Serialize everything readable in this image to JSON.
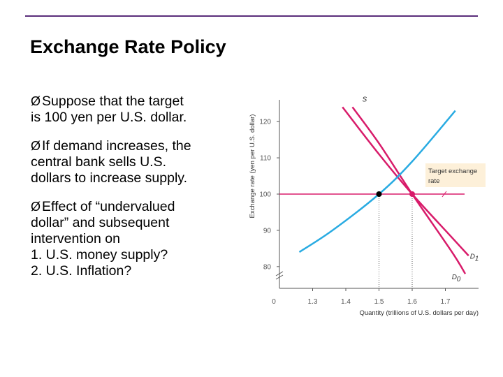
{
  "slide": {
    "title": "Exchange Rate Policy",
    "accent_color": "#5a2d7a"
  },
  "bullets": [
    {
      "marker": "Ø",
      "lines": [
        "Suppose that the target",
        "is 100 yen per U.S. dollar."
      ]
    },
    {
      "marker": "Ø",
      "lines": [
        "If demand increases, the",
        "central bank sells U.S.",
        "dollars to increase supply."
      ]
    },
    {
      "marker": "Ø",
      "lines": [
        "Effect of “undervalued",
        "dollar” and subsequent",
        "intervention on"
      ],
      "sub_items": [
        "1. U.S. money supply?",
        "2. U.S. Inflation?"
      ]
    }
  ],
  "chart_data": {
    "type": "line",
    "xlabel": "Quantity (trillions of U.S. dollars per day)",
    "ylabel": "Exchange rate (yen per U.S. dollar)",
    "origin_label": "0",
    "x_ticks": [
      "1.3",
      "1.4",
      "1.5",
      "1.6",
      "1.7"
    ],
    "y_ticks": [
      "80",
      "90",
      "100",
      "110",
      "120"
    ],
    "xlim": [
      1.2,
      1.8
    ],
    "ylim": [
      74,
      126
    ],
    "colors": {
      "supply": "#d81b6a",
      "demand": "#29abe2",
      "target": "#d81b6a",
      "target_tick": "#d81b6a",
      "axis": "#555555"
    },
    "series": [
      {
        "name": "S",
        "x": [
          1.42,
          1.5,
          1.6,
          1.72,
          1.76
        ],
        "y": [
          124,
          114,
          100,
          84,
          78
        ]
      },
      {
        "name": "D1",
        "x": [
          1.39,
          1.5,
          1.6,
          1.72,
          1.77
        ],
        "y": [
          124,
          111,
          100,
          88,
          83
        ]
      },
      {
        "name": "D0",
        "x": [
          1.26,
          1.36,
          1.5,
          1.6,
          1.73
        ],
        "y": [
          84,
          90,
          100,
          109,
          123
        ]
      }
    ],
    "target": {
      "label_lines": [
        "Target exchange",
        "rate"
      ],
      "value": 100
    },
    "points": [
      {
        "x": 1.5,
        "y": 100
      },
      {
        "x": 1.6,
        "y": 100
      }
    ]
  }
}
